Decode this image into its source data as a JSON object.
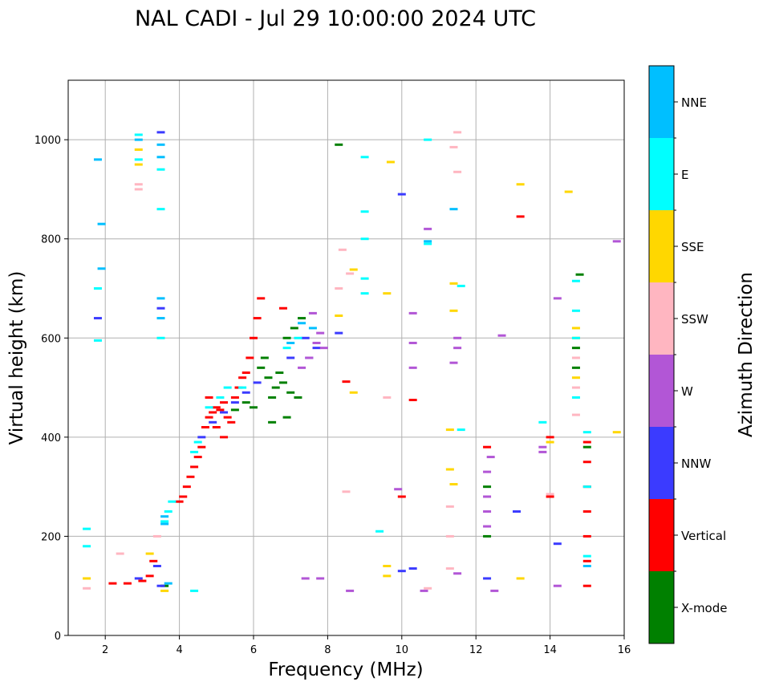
{
  "chart_data": {
    "type": "scatter",
    "title": "NAL CADI - Jul 29 10:00:00 2024 UTC",
    "xlabel": "Frequency (MHz)",
    "ylabel": "Virtual height (km)",
    "xlim": [
      1,
      16
    ],
    "ylim": [
      0,
      1120
    ],
    "xticks": [
      2,
      4,
      6,
      8,
      10,
      12,
      14,
      16
    ],
    "yticks": [
      0,
      200,
      400,
      600,
      800,
      1000
    ],
    "grid": true,
    "colorbar": {
      "label": "Azimuth Direction",
      "categories": [
        {
          "name": "X-mode",
          "color": "#008000"
        },
        {
          "name": "Vertical",
          "color": "#ff0000"
        },
        {
          "name": "NNW",
          "color": "#3b3bff"
        },
        {
          "name": "W",
          "color": "#b256d6"
        },
        {
          "name": "SSW",
          "color": "#ffb6c1"
        },
        {
          "name": "SSE",
          "color": "#ffd700"
        },
        {
          "name": "E",
          "color": "#00ffff"
        },
        {
          "name": "NNE",
          "color": "#00bfff"
        }
      ]
    },
    "series": [
      {
        "name": "X-mode",
        "points": [
          [
            6.2,
            540
          ],
          [
            6.4,
            520
          ],
          [
            6.5,
            480
          ],
          [
            6.6,
            500
          ],
          [
            6.8,
            510
          ],
          [
            7.0,
            490
          ],
          [
            7.2,
            480
          ],
          [
            6.3,
            560
          ],
          [
            6.7,
            530
          ],
          [
            6.9,
            600
          ],
          [
            7.1,
            620
          ],
          [
            7.3,
            640
          ],
          [
            5.8,
            470
          ],
          [
            6.0,
            460
          ],
          [
            5.5,
            455
          ],
          [
            14.8,
            728
          ],
          [
            14.7,
            580
          ],
          [
            14.7,
            540
          ],
          [
            12.3,
            300
          ],
          [
            12.3,
            200
          ],
          [
            15.0,
            380
          ],
          [
            3.6,
            100
          ],
          [
            8.3,
            990
          ],
          [
            6.5,
            430
          ],
          [
            6.9,
            440
          ]
        ]
      },
      {
        "name": "Vertical",
        "points": [
          [
            4.2,
            300
          ],
          [
            4.1,
            280
          ],
          [
            4.0,
            270
          ],
          [
            4.3,
            320
          ],
          [
            4.4,
            340
          ],
          [
            4.5,
            360
          ],
          [
            4.6,
            380
          ],
          [
            4.7,
            420
          ],
          [
            4.8,
            440
          ],
          [
            4.9,
            450
          ],
          [
            5.0,
            460
          ],
          [
            5.1,
            455
          ],
          [
            5.2,
            470
          ],
          [
            5.3,
            440
          ],
          [
            5.4,
            430
          ],
          [
            5.5,
            480
          ],
          [
            5.6,
            500
          ],
          [
            5.7,
            520
          ],
          [
            5.8,
            530
          ],
          [
            5.9,
            560
          ],
          [
            6.0,
            600
          ],
          [
            6.1,
            640
          ],
          [
            6.2,
            680
          ],
          [
            5.0,
            420
          ],
          [
            5.2,
            400
          ],
          [
            4.8,
            480
          ],
          [
            15.0,
            100
          ],
          [
            15.0,
            150
          ],
          [
            15.0,
            200
          ],
          [
            15.0,
            250
          ],
          [
            15.0,
            300
          ],
          [
            15.0,
            350
          ],
          [
            15.0,
            390
          ],
          [
            13.2,
            845
          ],
          [
            14.0,
            280
          ],
          [
            14.0,
            400
          ],
          [
            10.0,
            280
          ],
          [
            10.3,
            475
          ],
          [
            8.5,
            512
          ],
          [
            3.3,
            150
          ],
          [
            3.2,
            120
          ],
          [
            2.2,
            105
          ],
          [
            2.6,
            105
          ],
          [
            3.0,
            110
          ],
          [
            12.3,
            380
          ],
          [
            6.8,
            660
          ]
        ]
      },
      {
        "name": "NNW",
        "points": [
          [
            4.6,
            400
          ],
          [
            4.9,
            430
          ],
          [
            5.2,
            450
          ],
          [
            5.5,
            470
          ],
          [
            5.8,
            490
          ],
          [
            6.1,
            510
          ],
          [
            7.0,
            560
          ],
          [
            7.4,
            600
          ],
          [
            10.0,
            890
          ],
          [
            10.0,
            130
          ],
          [
            10.3,
            135
          ],
          [
            13.1,
            250
          ],
          [
            14.2,
            185
          ],
          [
            3.5,
            100
          ],
          [
            3.5,
            660
          ],
          [
            3.5,
            1015
          ],
          [
            12.3,
            115
          ],
          [
            2.9,
            115
          ],
          [
            3.4,
            140
          ],
          [
            1.8,
            640
          ],
          [
            7.5,
            560
          ],
          [
            7.7,
            580
          ],
          [
            8.3,
            610
          ]
        ]
      },
      {
        "name": "W",
        "points": [
          [
            7.3,
            540
          ],
          [
            7.5,
            560
          ],
          [
            7.7,
            590
          ],
          [
            7.8,
            610
          ],
          [
            7.9,
            580
          ],
          [
            7.6,
            650
          ],
          [
            12.3,
            250
          ],
          [
            12.3,
            220
          ],
          [
            12.3,
            280
          ],
          [
            12.3,
            330
          ],
          [
            12.4,
            360
          ],
          [
            12.5,
            90
          ],
          [
            13.8,
            380
          ],
          [
            13.8,
            370
          ],
          [
            14.2,
            680
          ],
          [
            14.2,
            100
          ],
          [
            15.8,
            795
          ],
          [
            10.3,
            650
          ],
          [
            10.3,
            540
          ],
          [
            10.3,
            590
          ],
          [
            10.7,
            820
          ],
          [
            11.4,
            550
          ],
          [
            11.5,
            580
          ],
          [
            11.5,
            600
          ],
          [
            9.9,
            295
          ],
          [
            11.5,
            125
          ],
          [
            8.6,
            90
          ],
          [
            7.8,
            115
          ],
          [
            7.4,
            115
          ],
          [
            10.6,
            90
          ],
          [
            12.7,
            605
          ]
        ]
      },
      {
        "name": "SSW",
        "points": [
          [
            2.9,
            900
          ],
          [
            2.9,
            910
          ],
          [
            8.4,
            778
          ],
          [
            8.5,
            290
          ],
          [
            8.3,
            700
          ],
          [
            9.6,
            480
          ],
          [
            11.4,
            985
          ],
          [
            11.3,
            200
          ],
          [
            11.3,
            260
          ],
          [
            11.5,
            1015
          ],
          [
            11.5,
            935
          ],
          [
            11.3,
            135
          ],
          [
            14.7,
            445
          ],
          [
            14.7,
            500
          ],
          [
            14.7,
            560
          ],
          [
            3.4,
            200
          ],
          [
            2.4,
            165
          ],
          [
            1.5,
            95
          ],
          [
            10.7,
            95
          ],
          [
            14.0,
            285
          ],
          [
            8.6,
            730
          ]
        ]
      },
      {
        "name": "SSE",
        "points": [
          [
            8.7,
            490
          ],
          [
            8.7,
            738
          ],
          [
            8.3,
            645
          ],
          [
            9.6,
            690
          ],
          [
            9.6,
            140
          ],
          [
            9.6,
            120
          ],
          [
            13.2,
            910
          ],
          [
            13.2,
            115
          ],
          [
            14.5,
            895
          ],
          [
            11.3,
            335
          ],
          [
            11.4,
            305
          ],
          [
            11.4,
            710
          ],
          [
            11.4,
            655
          ],
          [
            15.8,
            410
          ],
          [
            3.2,
            165
          ],
          [
            2.9,
            950
          ],
          [
            2.9,
            980
          ],
          [
            14.7,
            620
          ],
          [
            14.7,
            600
          ],
          [
            14.0,
            390
          ],
          [
            1.5,
            115
          ],
          [
            3.6,
            90
          ],
          [
            9.7,
            955
          ],
          [
            11.3,
            415
          ],
          [
            14.7,
            520
          ]
        ]
      },
      {
        "name": "E",
        "points": [
          [
            3.7,
            250
          ],
          [
            3.6,
            230
          ],
          [
            3.8,
            270
          ],
          [
            4.4,
            370
          ],
          [
            4.5,
            390
          ],
          [
            4.8,
            460
          ],
          [
            5.1,
            480
          ],
          [
            5.3,
            500
          ],
          [
            5.7,
            500
          ],
          [
            6.9,
            580
          ],
          [
            7.2,
            600
          ],
          [
            9.0,
            965
          ],
          [
            9.0,
            855
          ],
          [
            9.0,
            720
          ],
          [
            9.0,
            690
          ],
          [
            9.0,
            800
          ],
          [
            9.4,
            210
          ],
          [
            10.7,
            1000
          ],
          [
            10.7,
            790
          ],
          [
            11.6,
            705
          ],
          [
            11.6,
            415
          ],
          [
            13.8,
            430
          ],
          [
            14.7,
            715
          ],
          [
            14.7,
            655
          ],
          [
            14.7,
            600
          ],
          [
            14.7,
            480
          ],
          [
            15.0,
            410
          ],
          [
            15.0,
            300
          ],
          [
            15.0,
            160
          ],
          [
            2.9,
            1010
          ],
          [
            2.9,
            960
          ],
          [
            3.5,
            940
          ],
          [
            3.5,
            600
          ],
          [
            3.5,
            860
          ],
          [
            1.5,
            215
          ],
          [
            1.5,
            180
          ],
          [
            4.4,
            90
          ],
          [
            1.8,
            595
          ],
          [
            1.8,
            700
          ]
        ]
      },
      {
        "name": "NNE",
        "points": [
          [
            3.6,
            240
          ],
          [
            3.6,
            225
          ],
          [
            3.7,
            105
          ],
          [
            3.5,
            990
          ],
          [
            3.5,
            965
          ],
          [
            3.5,
            680
          ],
          [
            3.5,
            640
          ],
          [
            2.9,
            1000
          ],
          [
            1.8,
            960
          ],
          [
            1.9,
            830
          ],
          [
            1.9,
            740
          ],
          [
            11.4,
            860
          ],
          [
            10.7,
            795
          ],
          [
            15.0,
            140
          ],
          [
            7.0,
            590
          ],
          [
            7.3,
            630
          ],
          [
            7.6,
            620
          ]
        ]
      }
    ]
  }
}
